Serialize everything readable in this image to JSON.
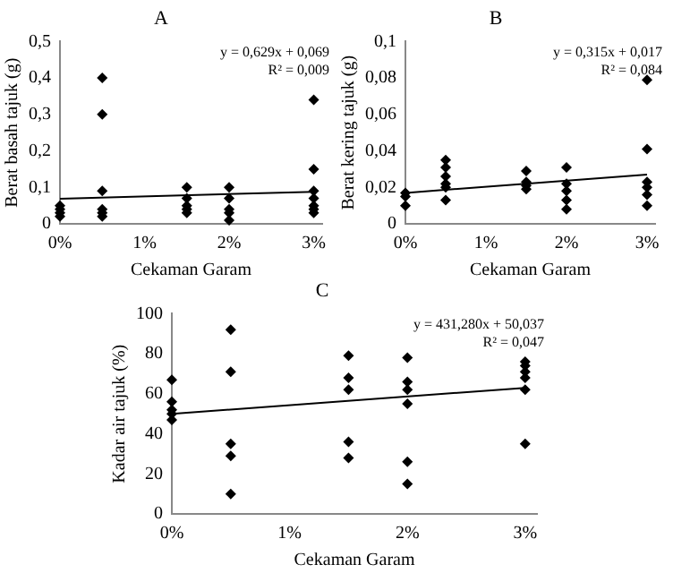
{
  "chart_data": [
    {
      "type": "scatter",
      "title": "A",
      "xlabel": "Cekaman Garam",
      "ylabel": "Berat basah tajuk (g)",
      "annotations": [
        "y = 0,629x + 0,069",
        "R² = 0,009"
      ],
      "grid": false,
      "xlim": [
        0,
        0.031
      ],
      "xticks": [
        {
          "value": 0,
          "label": "0%"
        },
        {
          "value": 0.01,
          "label": "1%"
        },
        {
          "value": 0.02,
          "label": "2%"
        },
        {
          "value": 0.03,
          "label": "3%"
        }
      ],
      "ylim": [
        0,
        0.5
      ],
      "yticks": [
        0,
        {
          "value": 0.1,
          "label": "0,1"
        },
        {
          "value": 0.2,
          "label": "0,2"
        },
        {
          "value": 0.3,
          "label": "0,3"
        },
        {
          "value": 0.4,
          "label": "0,4"
        },
        {
          "value": 0.5,
          "label": "0,5"
        }
      ],
      "series": [
        {
          "marker": "diamond",
          "color": "#000000",
          "x": [
            0,
            0,
            0,
            0,
            0.005,
            0.005,
            0.005,
            0.005,
            0.005,
            0.005,
            0.015,
            0.015,
            0.015,
            0.015,
            0.015,
            0.02,
            0.02,
            0.02,
            0.02,
            0.02,
            0.03,
            0.03,
            0.03,
            0.03,
            0.03,
            0.03,
            0.03
          ],
          "values": [
            0.02,
            0.03,
            0.04,
            0.05,
            0.02,
            0.03,
            0.04,
            0.09,
            0.3,
            0.4,
            0.03,
            0.04,
            0.05,
            0.07,
            0.1,
            0.01,
            0.03,
            0.04,
            0.07,
            0.1,
            0.03,
            0.04,
            0.05,
            0.07,
            0.09,
            0.15,
            0.34
          ]
        },
        {
          "type": "line",
          "marker": "none",
          "color": "#000000",
          "x": [
            0,
            0.03
          ],
          "values": [
            0.069,
            0.088
          ]
        }
      ]
    },
    {
      "type": "scatter",
      "title": "B",
      "xlabel": "Cekaman Garam",
      "ylabel": "Berat kering tajuk (g)",
      "annotations": [
        "y = 0,315x + 0,017",
        "R² = 0,084"
      ],
      "grid": false,
      "xlim": [
        0,
        0.031
      ],
      "xticks": [
        {
          "value": 0,
          "label": "0%"
        },
        {
          "value": 0.01,
          "label": "1%"
        },
        {
          "value": 0.02,
          "label": "2%"
        },
        {
          "value": 0.03,
          "label": "3%"
        }
      ],
      "ylim": [
        0,
        0.1
      ],
      "yticks": [
        0,
        {
          "value": 0.02,
          "label": "0,02"
        },
        {
          "value": 0.04,
          "label": "0,04"
        },
        {
          "value": 0.06,
          "label": "0,06"
        },
        {
          "value": 0.08,
          "label": "0,08"
        },
        {
          "value": 0.1,
          "label": "0,1"
        }
      ],
      "series": [
        {
          "marker": "diamond",
          "color": "#000000",
          "x": [
            0,
            0,
            0,
            0.005,
            0.005,
            0.005,
            0.005,
            0.005,
            0.005,
            0.015,
            0.015,
            0.015,
            0.015,
            0.02,
            0.02,
            0.02,
            0.02,
            0.02,
            0.03,
            0.03,
            0.03,
            0.03,
            0.03,
            0.03
          ],
          "values": [
            0.01,
            0.015,
            0.017,
            0.013,
            0.02,
            0.022,
            0.026,
            0.031,
            0.035,
            0.019,
            0.021,
            0.023,
            0.029,
            0.008,
            0.013,
            0.018,
            0.022,
            0.031,
            0.01,
            0.016,
            0.02,
            0.023,
            0.041,
            0.079
          ]
        },
        {
          "type": "line",
          "marker": "none",
          "color": "#000000",
          "x": [
            0,
            0.03
          ],
          "values": [
            0.017,
            0.027
          ]
        }
      ]
    },
    {
      "type": "scatter",
      "title": "C",
      "xlabel": "Cekaman Garam",
      "ylabel": "Kadar air tajuk (%)",
      "annotations": [
        "y = 431,280x + 50,037",
        "R² = 0,047"
      ],
      "grid": false,
      "xlim": [
        0,
        0.031
      ],
      "xticks": [
        {
          "value": 0,
          "label": "0%"
        },
        {
          "value": 0.01,
          "label": "1%"
        },
        {
          "value": 0.02,
          "label": "2%"
        },
        {
          "value": 0.03,
          "label": "3%"
        }
      ],
      "ylim": [
        0,
        100
      ],
      "yticks": [
        0,
        20,
        40,
        60,
        80,
        100
      ],
      "series": [
        {
          "marker": "diamond",
          "color": "#000000",
          "x": [
            0,
            0,
            0,
            0,
            0,
            0.005,
            0.005,
            0.005,
            0.005,
            0.005,
            0.015,
            0.015,
            0.015,
            0.015,
            0.015,
            0.02,
            0.02,
            0.02,
            0.02,
            0.02,
            0.02,
            0.03,
            0.03,
            0.03,
            0.03,
            0.03,
            0.03
          ],
          "values": [
            47,
            50,
            52,
            56,
            67,
            10,
            29,
            35,
            71,
            92,
            28,
            36,
            62,
            68,
            79,
            15,
            26,
            55,
            62,
            66,
            78,
            35,
            62,
            68,
            71,
            74,
            76
          ]
        },
        {
          "type": "line",
          "marker": "none",
          "color": "#000000",
          "x": [
            0,
            0.03
          ],
          "values": [
            50,
            63
          ]
        }
      ]
    }
  ]
}
